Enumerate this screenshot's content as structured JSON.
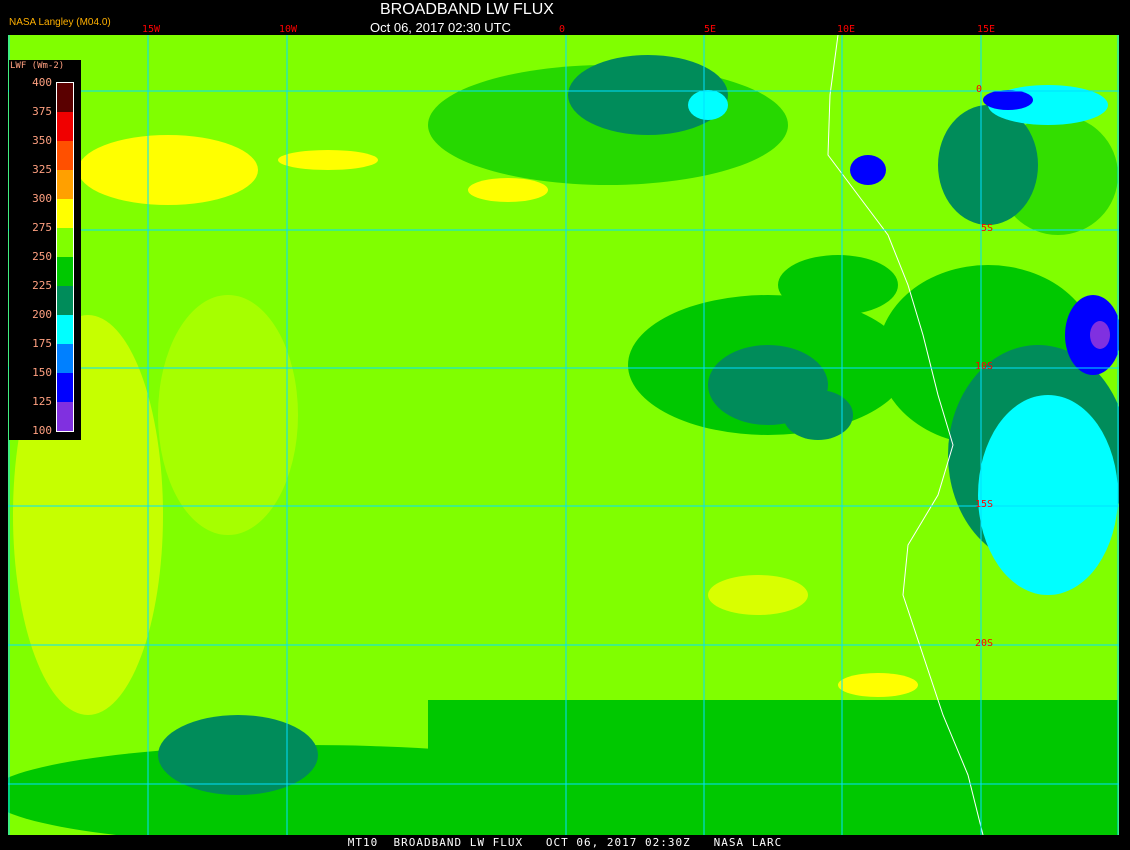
{
  "header": {
    "title": "BROADBAND LW FLUX",
    "datetime": "Oct 06, 2017 02:30 UTC",
    "credit": "NASA Langley (M04.0)"
  },
  "longitude_labels": [
    "15W",
    "10W",
    "0",
    "5E",
    "10E",
    "15E"
  ],
  "latitude_labels": [
    "0",
    "5S",
    "10S",
    "15S",
    "20S"
  ],
  "legend": {
    "units": "LWF (Wm-2)",
    "ticks": [
      "400",
      "375",
      "350",
      "325",
      "300",
      "275",
      "250",
      "225",
      "200",
      "175",
      "150",
      "125",
      "100"
    ],
    "colors": [
      "#5a0000",
      "#f00000",
      "#ff5000",
      "#ffa000",
      "#ffff00",
      "#80ff00",
      "#00c800",
      "#008c5a",
      "#00ffff",
      "#0080ff",
      "#0000ff",
      "#8030e0"
    ]
  },
  "map": {
    "background_color": "#80ff00",
    "grid_color": "#00e0ff",
    "coastline_color": "#ffffff"
  },
  "footer": {
    "text": "MT10  BROADBAND LW FLUX   OCT 06, 2017 02:30Z   NASA LARC"
  }
}
